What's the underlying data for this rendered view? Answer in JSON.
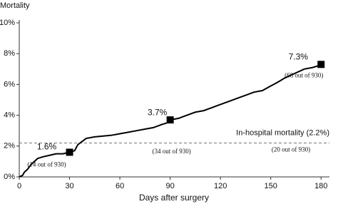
{
  "chart_data": {
    "type": "line",
    "y_label": "Mortality",
    "x_label": "Days after surgery",
    "color": "#000000",
    "x": [
      0,
      2,
      3,
      5,
      7,
      9,
      11,
      14,
      18,
      22,
      26,
      30,
      33,
      35,
      40,
      45,
      55,
      60,
      65,
      70,
      75,
      80,
      85,
      88,
      90,
      95,
      100,
      105,
      110,
      115,
      120,
      125,
      130,
      135,
      140,
      145,
      150,
      155,
      158,
      162,
      166,
      170,
      175,
      178,
      180
    ],
    "values": [
      0,
      0.1,
      0.3,
      0.5,
      0.8,
      1.0,
      1.2,
      1.3,
      1.4,
      1.5,
      1.5,
      1.6,
      1.7,
      2.1,
      2.5,
      2.6,
      2.7,
      2.8,
      2.9,
      3.0,
      3.1,
      3.2,
      3.4,
      3.5,
      3.7,
      3.8,
      4.0,
      4.2,
      4.3,
      4.5,
      4.7,
      4.9,
      5.1,
      5.3,
      5.5,
      5.6,
      5.9,
      6.2,
      6.4,
      6.6,
      6.8,
      7.0,
      7.1,
      7.2,
      7.3
    ],
    "xlim": [
      0,
      185
    ],
    "xticks": [
      0,
      30,
      60,
      90,
      120,
      150,
      180
    ],
    "ylim": [
      0,
      10
    ],
    "yticks": [
      {
        "value": 0,
        "label": "0%"
      },
      {
        "value": 2,
        "label": "2%"
      },
      {
        "value": 4,
        "label": "4%"
      },
      {
        "value": 6,
        "label": "6%"
      },
      {
        "value": 8,
        "label": "8%"
      },
      {
        "value": 10,
        "label": "10%"
      }
    ],
    "markers": [
      {
        "x": 30,
        "value": 1.6,
        "label": "1.6%",
        "note": "(14 out of 930)"
      },
      {
        "x": 90,
        "value": 3.7,
        "label": "3.7%",
        "note": "(34 out of 930)"
      },
      {
        "x": 180,
        "value": 7.3,
        "label": "7.3%",
        "note": "(68 out of 930)"
      }
    ],
    "reference_line": {
      "value": 2.2,
      "label": "In-hospital mortality (2.2%)",
      "note": "(20 out of 930)"
    }
  }
}
